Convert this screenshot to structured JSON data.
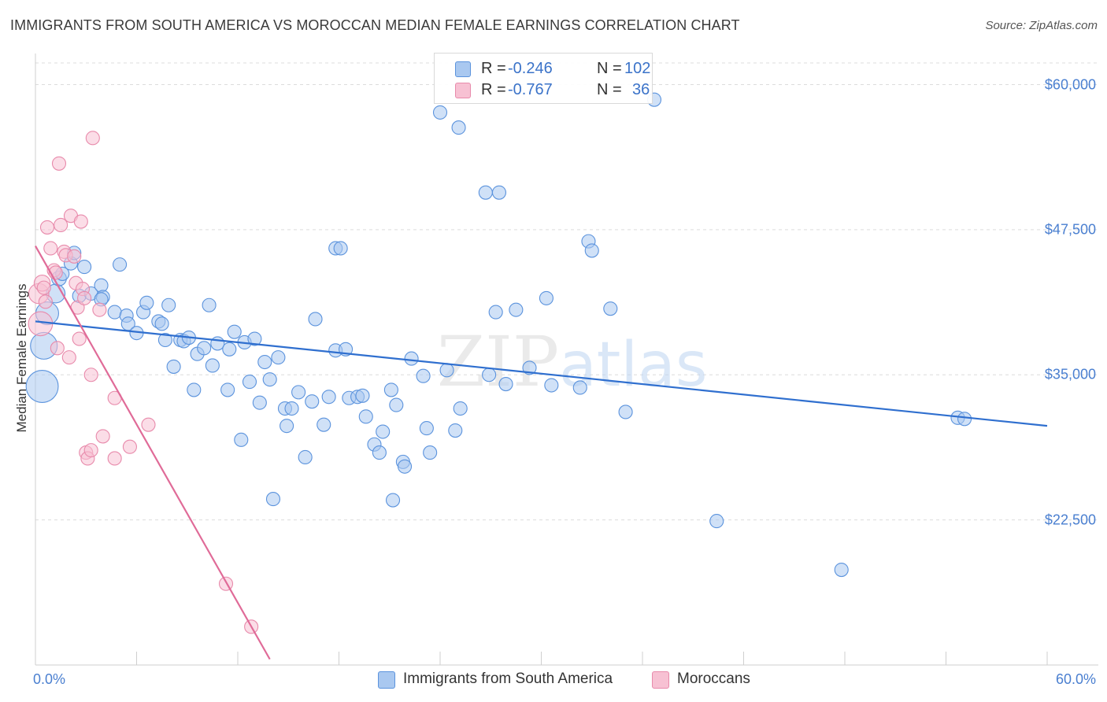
{
  "header": {
    "title": "IMMIGRANTS FROM SOUTH AMERICA VS MOROCCAN MEDIAN FEMALE EARNINGS CORRELATION CHART",
    "source": "Source: ZipAtlas.com"
  },
  "watermark": {
    "part1": "ZIP",
    "part2": "atlas"
  },
  "legend": {
    "rows": [
      {
        "r_label": "R =",
        "r_value": "-0.246",
        "n_label": "N =",
        "n_value": "102"
      },
      {
        "r_label": "R =",
        "r_value": "-0.767",
        "n_label": "N =",
        "n_value": "36"
      }
    ]
  },
  "bottom_legend": {
    "series1": "Immigrants from South America",
    "series2": "Moroccans"
  },
  "colors": {
    "blue_fill": "#a9c8f0",
    "blue_stroke": "#5b93dd",
    "blue_line": "#2f6fcf",
    "pink_fill": "#f7c1d3",
    "pink_stroke": "#e88aab",
    "pink_line": "#e06b98",
    "axis_text": "#4a7fd0",
    "grid": "#dcdcdc"
  },
  "chart_data": {
    "type": "scatter",
    "title": "IMMIGRANTS FROM SOUTH AMERICA VS MOROCCAN MEDIAN FEMALE EARNINGS CORRELATION CHART",
    "xlabel": "",
    "ylabel": "Median Female Earnings",
    "xlim": [
      0,
      60
    ],
    "ylim": [
      10000,
      62000
    ],
    "x_tick_labels": [
      "0.0%",
      "60.0%"
    ],
    "y_ticks": [
      22500,
      35000,
      47500,
      60000
    ],
    "y_tick_labels": [
      "$22,500",
      "$35,000",
      "$47,500",
      "$60,000"
    ],
    "grid": true,
    "legend_position": "top-center",
    "series": [
      {
        "name": "Immigrants from South America",
        "R": -0.246,
        "N": 102,
        "trend": {
          "x": [
            0,
            60
          ],
          "y": [
            39600,
            30600
          ]
        },
        "points": [
          [
            0.4,
            34000,
            2.4
          ],
          [
            0.5,
            37500,
            2.0
          ],
          [
            0.7,
            40300,
            1.7
          ],
          [
            1.2,
            42000,
            1.4
          ],
          [
            1.4,
            43300,
            1.1
          ],
          [
            1.6,
            43700,
            1.0
          ],
          [
            2.1,
            44600,
            1.0
          ],
          [
            2.3,
            45500,
            1.0
          ],
          [
            2.6,
            41800,
            1.0
          ],
          [
            2.9,
            44300,
            1.0
          ],
          [
            3.3,
            42000,
            1.0
          ],
          [
            3.9,
            42700,
            1.0
          ],
          [
            4.0,
            41700,
            1.0
          ],
          [
            3.9,
            41500,
            1.0
          ],
          [
            4.7,
            40400,
            1.0
          ],
          [
            5.0,
            44500,
            1.0
          ],
          [
            5.4,
            40100,
            1.0
          ],
          [
            5.5,
            39400,
            1.0
          ],
          [
            6.0,
            38600,
            1.0
          ],
          [
            6.4,
            40400,
            1.0
          ],
          [
            6.6,
            41200,
            1.0
          ],
          [
            7.3,
            39600,
            1.0
          ],
          [
            7.5,
            39400,
            1.0
          ],
          [
            7.7,
            38000,
            1.0
          ],
          [
            7.9,
            41000,
            1.0
          ],
          [
            8.2,
            35700,
            1.0
          ],
          [
            8.6,
            38000,
            1.0
          ],
          [
            8.8,
            37900,
            1.0
          ],
          [
            9.1,
            38200,
            1.0
          ],
          [
            9.4,
            33700,
            1.0
          ],
          [
            9.6,
            36800,
            1.0
          ],
          [
            10.0,
            37300,
            1.0
          ],
          [
            10.3,
            41000,
            1.0
          ],
          [
            10.5,
            35800,
            1.0
          ],
          [
            10.8,
            37700,
            1.0
          ],
          [
            11.4,
            33700,
            1.0
          ],
          [
            11.5,
            37200,
            1.0
          ],
          [
            11.8,
            38700,
            1.0
          ],
          [
            12.2,
            29400,
            1.0
          ],
          [
            12.4,
            37800,
            1.0
          ],
          [
            12.7,
            34400,
            1.0
          ],
          [
            13.0,
            38100,
            1.0
          ],
          [
            13.3,
            32600,
            1.0
          ],
          [
            13.6,
            36100,
            1.0
          ],
          [
            13.9,
            34600,
            1.0
          ],
          [
            14.1,
            24300,
            1.0
          ],
          [
            14.4,
            36500,
            1.0
          ],
          [
            14.8,
            32100,
            1.0
          ],
          [
            14.9,
            30600,
            1.0
          ],
          [
            15.2,
            32100,
            1.0
          ],
          [
            15.6,
            33500,
            1.0
          ],
          [
            16.0,
            27900,
            1.0
          ],
          [
            16.4,
            32700,
            1.0
          ],
          [
            16.6,
            39800,
            1.0
          ],
          [
            17.1,
            30700,
            1.0
          ],
          [
            17.4,
            33100,
            1.0
          ],
          [
            17.8,
            37100,
            1.0
          ],
          [
            17.8,
            45900,
            1.0
          ],
          [
            18.1,
            45900,
            1.0
          ],
          [
            18.4,
            37200,
            1.0
          ],
          [
            18.6,
            33000,
            1.0
          ],
          [
            19.1,
            33100,
            1.0
          ],
          [
            19.4,
            33200,
            1.0
          ],
          [
            19.6,
            31400,
            1.0
          ],
          [
            20.1,
            29000,
            1.0
          ],
          [
            20.4,
            28300,
            1.0
          ],
          [
            20.6,
            30100,
            1.0
          ],
          [
            21.1,
            33700,
            1.0
          ],
          [
            21.2,
            24200,
            1.0
          ],
          [
            21.4,
            32400,
            1.0
          ],
          [
            21.8,
            27500,
            1.0
          ],
          [
            21.9,
            27100,
            1.0
          ],
          [
            22.3,
            36400,
            1.0
          ],
          [
            23.0,
            34900,
            1.0
          ],
          [
            23.2,
            30400,
            1.0
          ],
          [
            23.4,
            28300,
            1.0
          ],
          [
            24.0,
            57600,
            1.0
          ],
          [
            24.4,
            35400,
            1.0
          ],
          [
            24.9,
            30200,
            1.0
          ],
          [
            25.1,
            56300,
            1.0
          ],
          [
            25.2,
            32100,
            1.0
          ],
          [
            26.7,
            50700,
            1.0
          ],
          [
            26.9,
            35000,
            1.0
          ],
          [
            27.3,
            40400,
            1.0
          ],
          [
            27.5,
            50700,
            1.0
          ],
          [
            27.9,
            34200,
            1.0
          ],
          [
            28.5,
            40600,
            1.0
          ],
          [
            29.3,
            35600,
            1.0
          ],
          [
            30.3,
            41600,
            1.0
          ],
          [
            30.6,
            34100,
            1.0
          ],
          [
            32.3,
            33900,
            1.0
          ],
          [
            32.8,
            46500,
            1.0
          ],
          [
            33.0,
            45700,
            1.0
          ],
          [
            34.1,
            40700,
            1.0
          ],
          [
            35.0,
            31800,
            1.0
          ],
          [
            36.7,
            58700,
            1.0
          ],
          [
            40.4,
            22400,
            1.0
          ],
          [
            47.8,
            18200,
            1.0
          ],
          [
            54.7,
            31300,
            1.0
          ],
          [
            55.1,
            31200,
            1.0
          ]
        ]
      },
      {
        "name": "Moroccans",
        "R": -0.767,
        "N": 36,
        "trend": {
          "x": [
            0,
            13.9
          ],
          "y": [
            46100,
            10500
          ]
        },
        "points": [
          [
            0.2,
            42000,
            1.5
          ],
          [
            0.3,
            39400,
            1.8
          ],
          [
            0.4,
            42900,
            1.2
          ],
          [
            0.5,
            42500,
            1.0
          ],
          [
            0.6,
            41300,
            1.0
          ],
          [
            0.7,
            47700,
            1.0
          ],
          [
            0.9,
            45900,
            1.0
          ],
          [
            1.1,
            44000,
            1.0
          ],
          [
            1.2,
            43800,
            1.0
          ],
          [
            1.3,
            37300,
            1.0
          ],
          [
            1.4,
            53200,
            1.0
          ],
          [
            1.5,
            47900,
            1.0
          ],
          [
            1.7,
            45600,
            1.0
          ],
          [
            1.8,
            45300,
            1.0
          ],
          [
            2.0,
            36500,
            1.0
          ],
          [
            2.1,
            48700,
            1.0
          ],
          [
            2.3,
            45200,
            1.0
          ],
          [
            2.4,
            42900,
            1.0
          ],
          [
            2.5,
            40800,
            1.0
          ],
          [
            2.6,
            38100,
            1.0
          ],
          [
            2.7,
            48200,
            1.0
          ],
          [
            2.8,
            42400,
            1.0
          ],
          [
            2.9,
            41600,
            1.0
          ],
          [
            3.0,
            28300,
            1.0
          ],
          [
            3.1,
            27800,
            1.0
          ],
          [
            3.3,
            28500,
            1.0
          ],
          [
            3.3,
            35000,
            1.0
          ],
          [
            3.4,
            55400,
            1.0
          ],
          [
            3.8,
            40600,
            1.0
          ],
          [
            4.0,
            29700,
            1.0
          ],
          [
            4.7,
            33000,
            1.0
          ],
          [
            4.7,
            27800,
            1.0
          ],
          [
            5.6,
            28800,
            1.0
          ],
          [
            6.7,
            30700,
            1.0
          ],
          [
            11.3,
            17000,
            1.0
          ],
          [
            12.8,
            13300,
            1.0
          ]
        ]
      }
    ]
  }
}
